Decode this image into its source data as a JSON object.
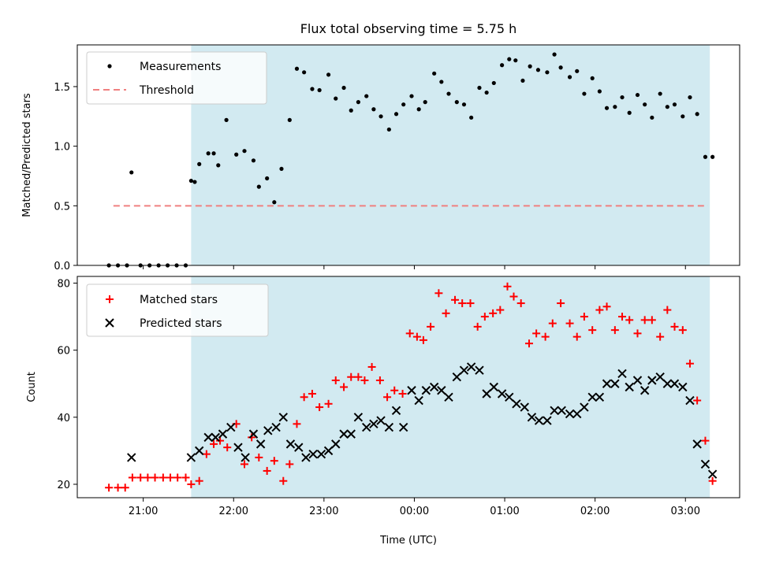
{
  "chart_data": [
    {
      "type": "scatter",
      "title": "Flux total observing time = 5.75 h",
      "xlabel": "",
      "ylabel": "Matched/Predicted stars",
      "ylim": [
        0,
        1.85
      ],
      "yticks": [
        "0.0",
        "0.5",
        "1.0",
        "1.5"
      ],
      "grid": false,
      "legend": "top-left",
      "shaded_region": {
        "start_hour": 21.53,
        "end_hour": 27.27,
        "color": "#add8e6"
      },
      "threshold": {
        "name": "Threshold",
        "value": 0.5,
        "color": "#f08080",
        "x_start": 20.67,
        "x_end": 27.25
      },
      "series": [
        {
          "name": "Measurements",
          "color": "#000000",
          "marker": "dot",
          "x": [
            20.62,
            20.72,
            20.82,
            20.87,
            20.97,
            21.07,
            21.17,
            21.27,
            21.37,
            21.47,
            21.53,
            21.57,
            21.62,
            21.72,
            21.78,
            21.83,
            21.92,
            22.03,
            22.12,
            22.22,
            22.28,
            22.37,
            22.45,
            22.53,
            22.62,
            22.7,
            22.78,
            22.87,
            22.95,
            23.05,
            23.13,
            23.22,
            23.3,
            23.38,
            23.47,
            23.55,
            23.63,
            23.72,
            23.8,
            23.88,
            23.97,
            24.05,
            24.12,
            24.22,
            24.3,
            24.38,
            24.47,
            24.55,
            24.63,
            24.72,
            24.8,
            24.88,
            24.97,
            25.05,
            25.12,
            25.2,
            25.28,
            25.37,
            25.47,
            25.55,
            25.62,
            25.72,
            25.8,
            25.88,
            25.97,
            26.05,
            26.13,
            26.22,
            26.3,
            26.38,
            26.47,
            26.55,
            26.63,
            26.72,
            26.8,
            26.88,
            26.97,
            27.05,
            27.13,
            27.22,
            27.3
          ],
          "values": [
            0,
            0,
            0,
            0.78,
            0,
            0,
            0,
            0,
            0,
            0,
            0.71,
            0.7,
            0.85,
            0.94,
            0.94,
            0.84,
            1.22,
            0.93,
            0.96,
            0.88,
            0.66,
            0.73,
            0.53,
            0.81,
            1.22,
            1.65,
            1.62,
            1.48,
            1.47,
            1.6,
            1.4,
            1.49,
            1.3,
            1.37,
            1.42,
            1.31,
            1.25,
            1.14,
            1.27,
            1.35,
            1.42,
            1.31,
            1.37,
            1.61,
            1.54,
            1.44,
            1.37,
            1.35,
            1.24,
            1.49,
            1.45,
            1.53,
            1.68,
            1.73,
            1.72,
            1.55,
            1.67,
            1.64,
            1.62,
            1.77,
            1.66,
            1.58,
            1.63,
            1.44,
            1.57,
            1.46,
            1.32,
            1.33,
            1.41,
            1.28,
            1.43,
            1.35,
            1.24,
            1.44,
            1.33,
            1.35,
            1.25,
            1.41,
            1.27,
            0.91,
            0.91
          ]
        }
      ]
    },
    {
      "type": "scatter",
      "title": "",
      "xlabel": "Time (UTC)",
      "ylabel": "Count",
      "ylim": [
        16,
        82
      ],
      "yticks": [
        "20",
        "40",
        "60",
        "80"
      ],
      "xticks": [
        "21:00",
        "22:00",
        "23:00",
        "00:00",
        "01:00",
        "02:00",
        "03:00"
      ],
      "grid": false,
      "legend": "top-left",
      "shaded_region": {
        "start_hour": 21.53,
        "end_hour": 27.27,
        "color": "#add8e6"
      },
      "series": [
        {
          "name": "Matched stars",
          "color": "#ff0000",
          "marker": "plus",
          "x": [
            20.62,
            20.72,
            20.8,
            20.88,
            20.97,
            21.05,
            21.13,
            21.22,
            21.3,
            21.38,
            21.47,
            21.53,
            21.62,
            21.7,
            21.78,
            21.85,
            21.93,
            22.03,
            22.12,
            22.2,
            22.28,
            22.37,
            22.45,
            22.55,
            22.62,
            22.7,
            22.78,
            22.87,
            22.95,
            23.05,
            23.13,
            23.22,
            23.3,
            23.38,
            23.45,
            23.53,
            23.62,
            23.7,
            23.78,
            23.87,
            23.95,
            24.03,
            24.1,
            24.18,
            24.27,
            24.35,
            24.45,
            24.53,
            24.62,
            24.7,
            24.78,
            24.87,
            24.95,
            25.03,
            25.1,
            25.18,
            25.27,
            25.35,
            25.45,
            25.53,
            25.62,
            25.72,
            25.8,
            25.88,
            25.97,
            26.05,
            26.13,
            26.22,
            26.3,
            26.38,
            26.47,
            26.55,
            26.63,
            26.72,
            26.8,
            26.88,
            26.97,
            27.05,
            27.13,
            27.22,
            27.3
          ],
          "values": [
            19,
            19,
            19,
            22,
            22,
            22,
            22,
            22,
            22,
            22,
            22,
            20,
            21,
            29,
            32,
            33,
            31,
            38,
            26,
            34,
            28,
            24,
            27,
            21,
            26,
            38,
            46,
            47,
            43,
            44,
            51,
            49,
            52,
            52,
            51,
            55,
            51,
            46,
            48,
            47,
            65,
            64,
            63,
            67,
            77,
            71,
            75,
            74,
            74,
            67,
            70,
            71,
            72,
            79,
            76,
            74,
            62,
            65,
            64,
            68,
            74,
            68,
            64,
            70,
            66,
            72,
            73,
            66,
            70,
            69,
            65,
            69,
            69,
            64,
            72,
            67,
            66,
            56,
            45,
            33,
            21
          ]
        },
        {
          "name": "Predicted stars",
          "color": "#000000",
          "marker": "x",
          "x": [
            20.87,
            21.53,
            21.62,
            21.72,
            21.8,
            21.88,
            21.97,
            22.05,
            22.13,
            22.22,
            22.3,
            22.38,
            22.47,
            22.55,
            22.63,
            22.72,
            22.8,
            22.88,
            22.97,
            23.05,
            23.13,
            23.22,
            23.3,
            23.38,
            23.47,
            23.55,
            23.63,
            23.72,
            23.8,
            23.88,
            23.97,
            24.05,
            24.13,
            24.22,
            24.3,
            24.38,
            24.47,
            24.55,
            24.63,
            24.72,
            24.8,
            24.88,
            24.97,
            25.05,
            25.13,
            25.22,
            25.3,
            25.38,
            25.47,
            25.55,
            25.63,
            25.72,
            25.8,
            25.88,
            25.97,
            26.05,
            26.13,
            26.22,
            26.3,
            26.38,
            26.47,
            26.55,
            26.63,
            26.72,
            26.8,
            26.88,
            26.97,
            27.05,
            27.13,
            27.22,
            27.3
          ],
          "values": [
            28,
            28,
            30,
            34,
            34,
            35,
            37,
            31,
            28,
            35,
            32,
            36,
            37,
            40,
            32,
            31,
            28,
            29,
            29,
            30,
            32,
            35,
            35,
            40,
            37,
            38,
            39,
            37,
            42,
            37,
            48,
            45,
            48,
            49,
            48,
            46,
            52,
            54,
            55,
            54,
            47,
            49,
            47,
            46,
            44,
            43,
            40,
            39,
            39,
            42,
            42,
            41,
            41,
            43,
            46,
            46,
            50,
            50,
            53,
            49,
            51,
            48,
            51,
            52,
            50,
            50,
            49,
            45,
            32,
            26,
            23
          ]
        }
      ]
    }
  ]
}
